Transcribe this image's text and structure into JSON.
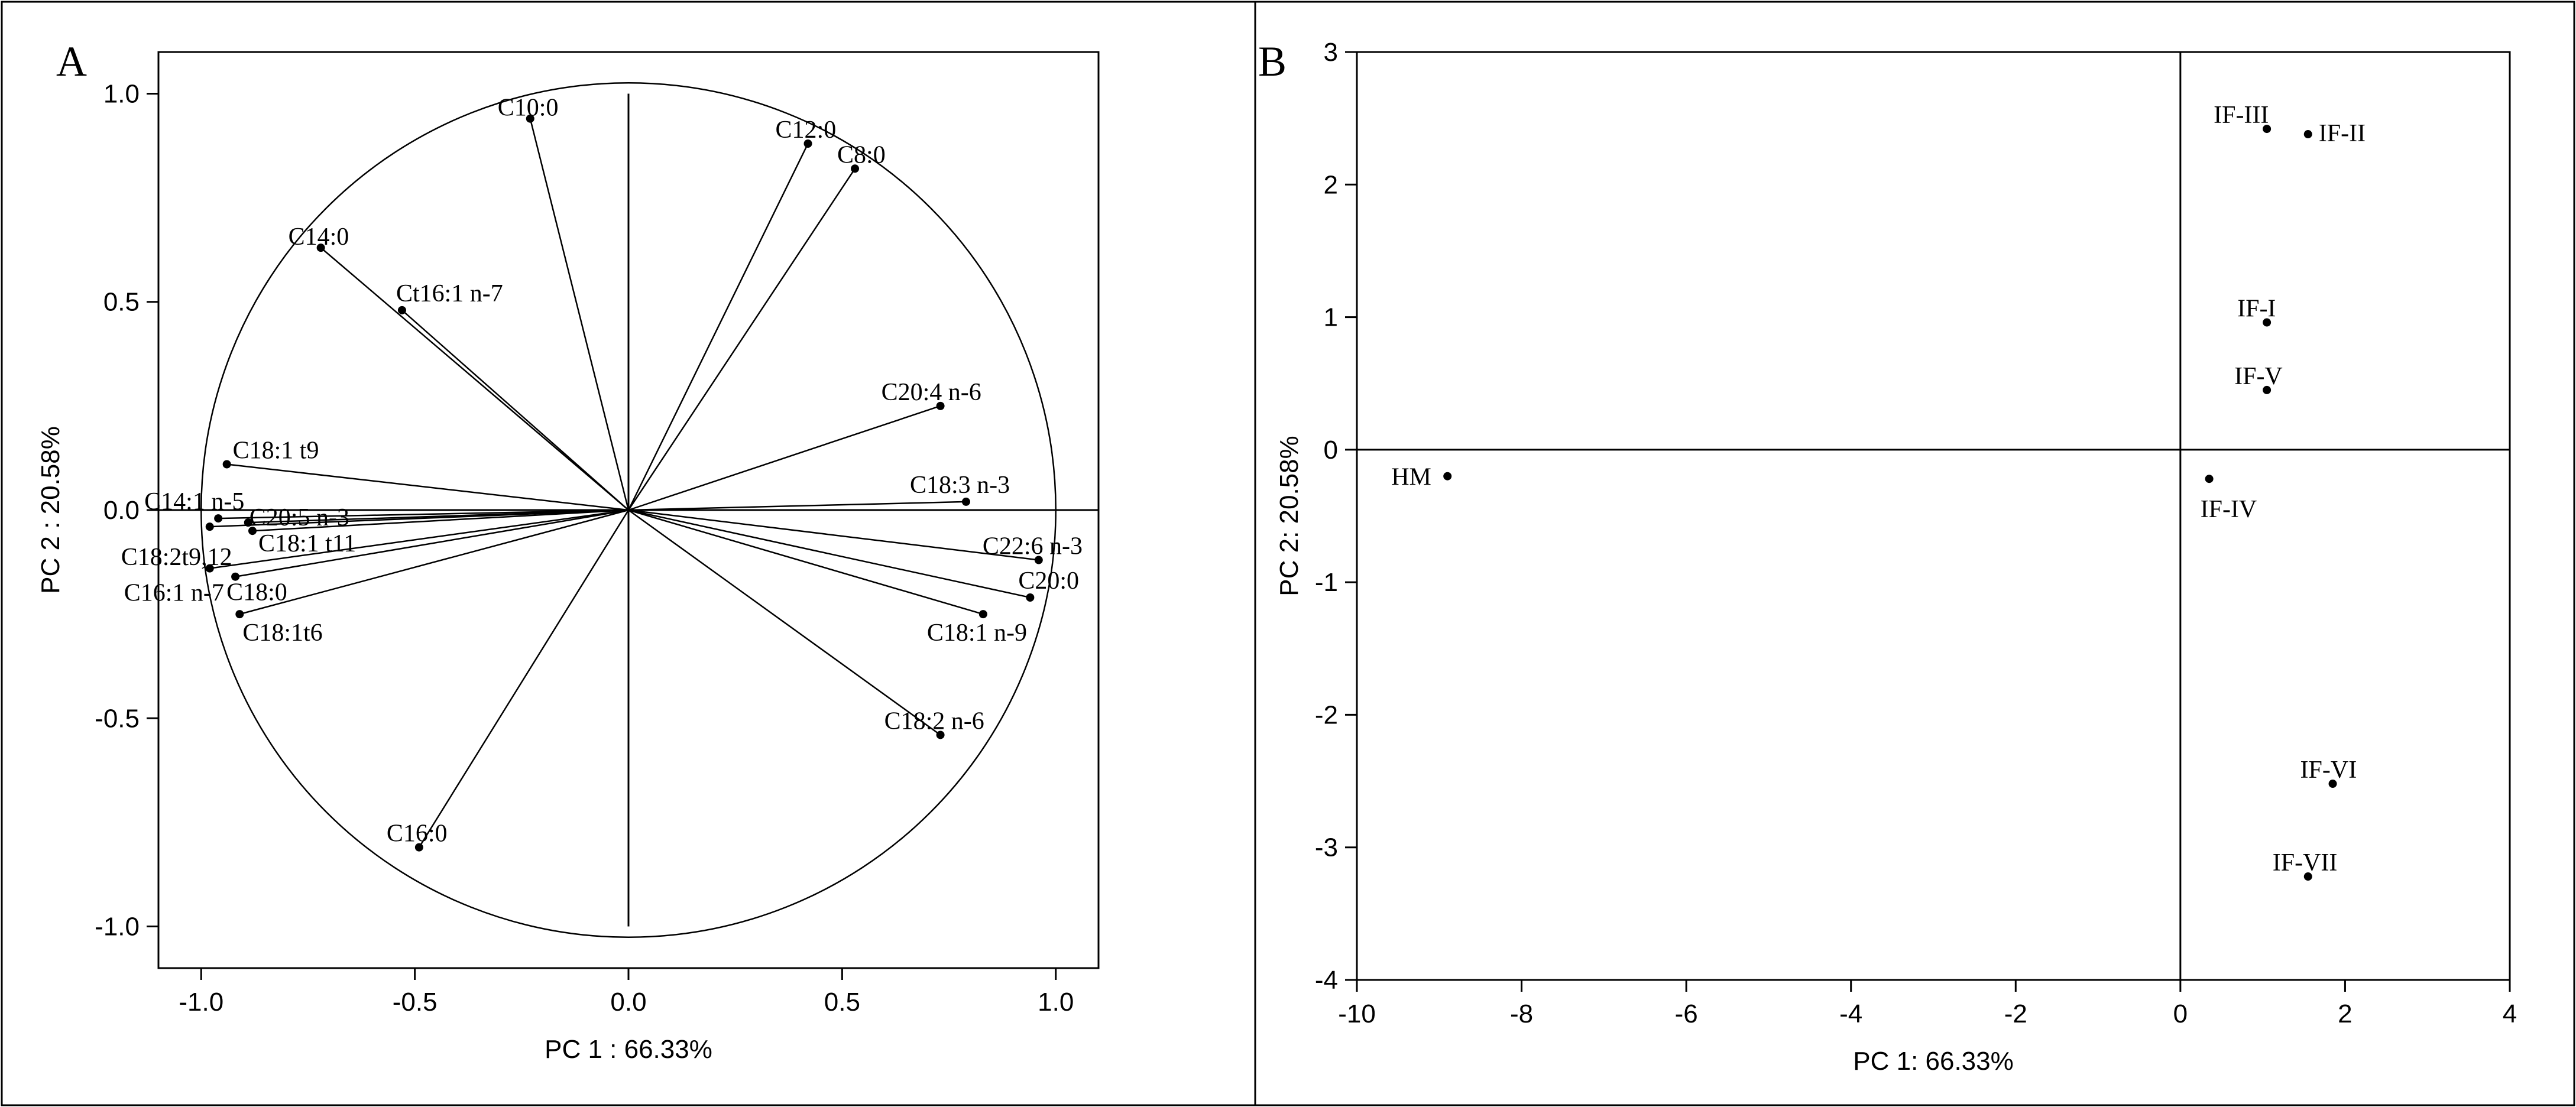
{
  "chart_data": [
    {
      "type": "scatter",
      "panel": "A",
      "xlabel": "PC 1 : 66.33%",
      "ylabel": "PC 2 : 20.58%",
      "xlim": [
        -1.1,
        1.1
      ],
      "ylim": [
        -1.1,
        1.1
      ],
      "xticks": [
        -1.0,
        -0.5,
        0.0,
        0.5,
        1.0
      ],
      "xtick_labels": [
        "-1.0",
        "-0.5",
        "0.0",
        "0.5",
        "1.0"
      ],
      "yticks": [
        -1.0,
        -0.5,
        0.0,
        0.5,
        1.0
      ],
      "ytick_labels": [
        "-1.0",
        "-0.5",
        "0.0",
        "0.5",
        "1.0"
      ],
      "unit_circle": true,
      "vectors_from_origin": true,
      "grid": false,
      "points": [
        {
          "label": "C10:0",
          "x": -0.23,
          "y": 0.94
        },
        {
          "label": "C12:0",
          "x": 0.42,
          "y": 0.88
        },
        {
          "label": "C8:0",
          "x": 0.53,
          "y": 0.82
        },
        {
          "label": "C14:0",
          "x": -0.72,
          "y": 0.63
        },
        {
          "label": "Ct16:1 n-7",
          "x": -0.53,
          "y": 0.48
        },
        {
          "label": "C20:4 n-6",
          "x": 0.73,
          "y": 0.25
        },
        {
          "label": "C18:1 t9",
          "x": -0.94,
          "y": 0.11
        },
        {
          "label": "C18:3 n-3",
          "x": 0.79,
          "y": 0.02
        },
        {
          "label": "C14:1 n-5",
          "x": -0.96,
          "y": -0.02
        },
        {
          "label": "C20:5 n-3",
          "x": -0.89,
          "y": -0.03
        },
        {
          "label": "C18:1 t11",
          "x": -0.88,
          "y": -0.05
        },
        {
          "label": "C18:2t9,12",
          "x": -0.98,
          "y": -0.04
        },
        {
          "label": "C22:6 n-3",
          "x": 0.96,
          "y": -0.12
        },
        {
          "label": "C16:1 n-7",
          "x": -0.98,
          "y": -0.14
        },
        {
          "label": "C18:0",
          "x": -0.92,
          "y": -0.16
        },
        {
          "label": "C20:0",
          "x": 0.94,
          "y": -0.21
        },
        {
          "label": "C18:1 n-9",
          "x": 0.83,
          "y": -0.25
        },
        {
          "label": "C18:1t6",
          "x": -0.91,
          "y": -0.25
        },
        {
          "label": "C18:2 n-6",
          "x": 0.73,
          "y": -0.54
        },
        {
          "label": "C16:0",
          "x": -0.49,
          "y": -0.81
        }
      ]
    },
    {
      "type": "scatter",
      "panel": "B",
      "xlabel": "PC 1: 66.33%",
      "ylabel": "PC 2: 20.58%",
      "xlim": [
        -10,
        4
      ],
      "ylim": [
        -4,
        3
      ],
      "xticks": [
        -10,
        -8,
        -6,
        -4,
        -2,
        0,
        2,
        4
      ],
      "xtick_labels": [
        "-10",
        "-8",
        "-6",
        "-4",
        "-2",
        "0",
        "2",
        "4"
      ],
      "yticks": [
        -4,
        -3,
        -2,
        -1,
        0,
        1,
        2,
        3
      ],
      "ytick_labels": [
        "-4",
        "-3",
        "-2",
        "-1",
        "0",
        "1",
        "2",
        "3"
      ],
      "grid": false,
      "points": [
        {
          "label": "IF-III",
          "x": 1.05,
          "y": 2.42
        },
        {
          "label": "IF-II",
          "x": 1.55,
          "y": 2.38
        },
        {
          "label": "IF-I",
          "x": 1.05,
          "y": 0.96
        },
        {
          "label": "IF-V",
          "x": 1.05,
          "y": 0.45
        },
        {
          "label": "HM",
          "x": -8.9,
          "y": -0.2
        },
        {
          "label": "IF-IV",
          "x": 0.35,
          "y": -0.22
        },
        {
          "label": "IF-VI",
          "x": 1.85,
          "y": -2.52
        },
        {
          "label": "IF-VII",
          "x": 1.55,
          "y": -3.22
        }
      ]
    }
  ]
}
